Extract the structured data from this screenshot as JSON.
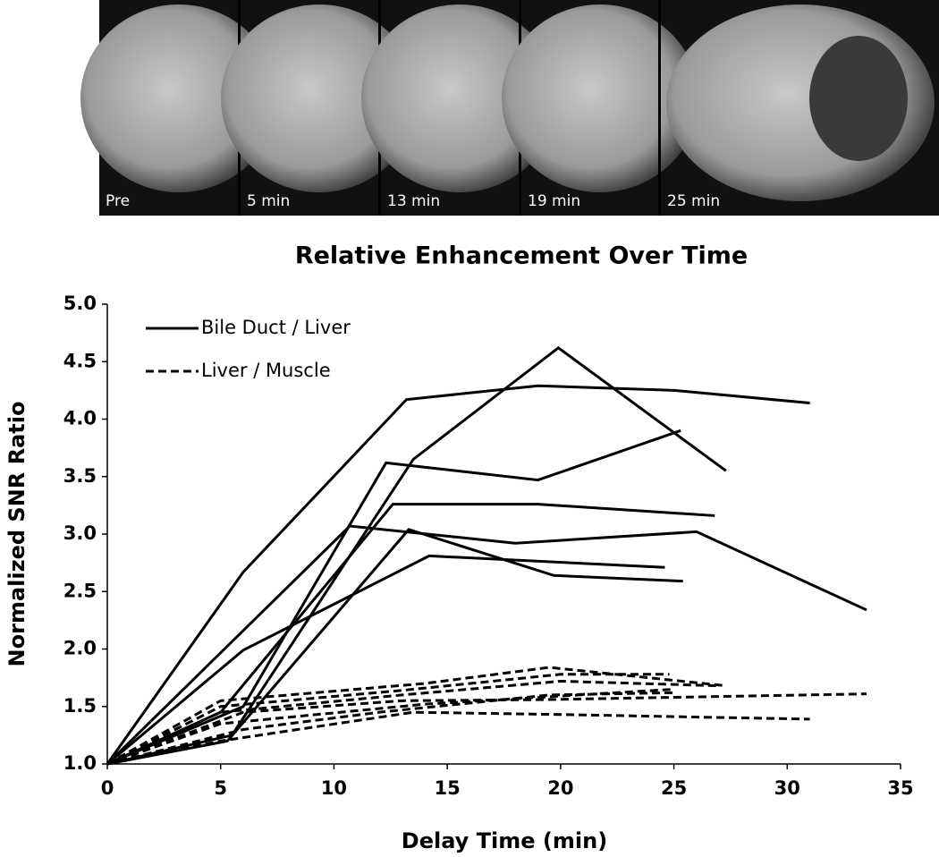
{
  "images": {
    "labels": [
      "Pre",
      "5 min",
      "13 min",
      "19 min",
      "25 min"
    ]
  },
  "chart_data": {
    "type": "line",
    "title": "Relative Enhancement Over Time",
    "x_label": "Delay Time (min)",
    "y_label": "Normalized SNR Ratio",
    "xlim": [
      0,
      35
    ],
    "xticks": [
      0,
      5,
      10,
      15,
      20,
      25,
      30,
      35
    ],
    "ylim": [
      1.0,
      5.0
    ],
    "yticks": [
      {
        "value": 1.0,
        "label": "1.0"
      },
      1.5,
      {
        "value": 2.0,
        "label": "2.0"
      },
      2.5,
      {
        "value": 3.0,
        "label": "3.0"
      },
      3.5,
      {
        "value": 4.0,
        "label": "4.0"
      },
      4.5,
      {
        "value": 5.0,
        "label": "5.0"
      }
    ],
    "legend": "top-left",
    "series": [
      {
        "name": "Bile Duct / Liver",
        "color": "#000000",
        "dashed": false,
        "lines": [
          {
            "x": [
              0,
              6,
              13.2,
              19,
              25,
              31
            ],
            "values": [
              1,
              2.67,
              4.17,
              4.29,
              4.25,
              4.14
            ]
          },
          {
            "x": [
              0,
              5.5,
              13.5,
              19.9,
              27.3
            ],
            "values": [
              1,
              1.25,
              3.65,
              4.62,
              3.55
            ]
          },
          {
            "x": [
              0,
              6,
              12.3,
              19,
              25.3
            ],
            "values": [
              1,
              1.5,
              3.62,
              3.47,
              3.9
            ]
          },
          {
            "x": [
              0,
              5,
              12.6,
              19,
              26.8
            ],
            "values": [
              1,
              1.45,
              3.26,
              3.26,
              3.16
            ]
          },
          {
            "x": [
              0,
              10.7,
              18,
              26,
              33.5
            ],
            "values": [
              1,
              3.07,
              2.92,
              3.02,
              2.34
            ]
          },
          {
            "x": [
              0,
              5.3,
              13.3,
              19.7,
              25.4
            ],
            "values": [
              1,
              1.2,
              3.04,
              2.64,
              2.59
            ]
          },
          {
            "x": [
              0,
              6,
              14.2,
              24.6
            ],
            "values": [
              1,
              1.99,
              2.81,
              2.71
            ]
          }
        ]
      },
      {
        "name": "Liver / Muscle",
        "color": "#000000",
        "dashed": true,
        "lines": [
          {
            "x": [
              0,
              5,
              14,
              19.5,
              27.3
            ],
            "values": [
              1,
              1.55,
              1.7,
              1.84,
              1.68
            ]
          },
          {
            "x": [
              0,
              5,
              13,
              20,
              24.8
            ],
            "values": [
              1,
              1.5,
              1.64,
              1.78,
              1.78
            ]
          },
          {
            "x": [
              0,
              5,
              13,
              20,
              27
            ],
            "values": [
              1,
              1.45,
              1.6,
              1.72,
              1.68
            ]
          },
          {
            "x": [
              0,
              6,
              13,
              19.5,
              33.5
            ],
            "values": [
              1,
              1.45,
              1.55,
              1.56,
              1.61
            ]
          },
          {
            "x": [
              0,
              5,
              14,
              25
            ],
            "values": [
              1,
              1.35,
              1.52,
              1.65
            ]
          },
          {
            "x": [
              0,
              5,
              13.5,
              20,
              31
            ],
            "values": [
              1,
              1.2,
              1.45,
              1.43,
              1.39
            ]
          },
          {
            "x": [
              0,
              6,
              12,
              19.5,
              25
            ],
            "values": [
              1,
              1.3,
              1.45,
              1.6,
              1.62
            ]
          }
        ]
      }
    ]
  }
}
